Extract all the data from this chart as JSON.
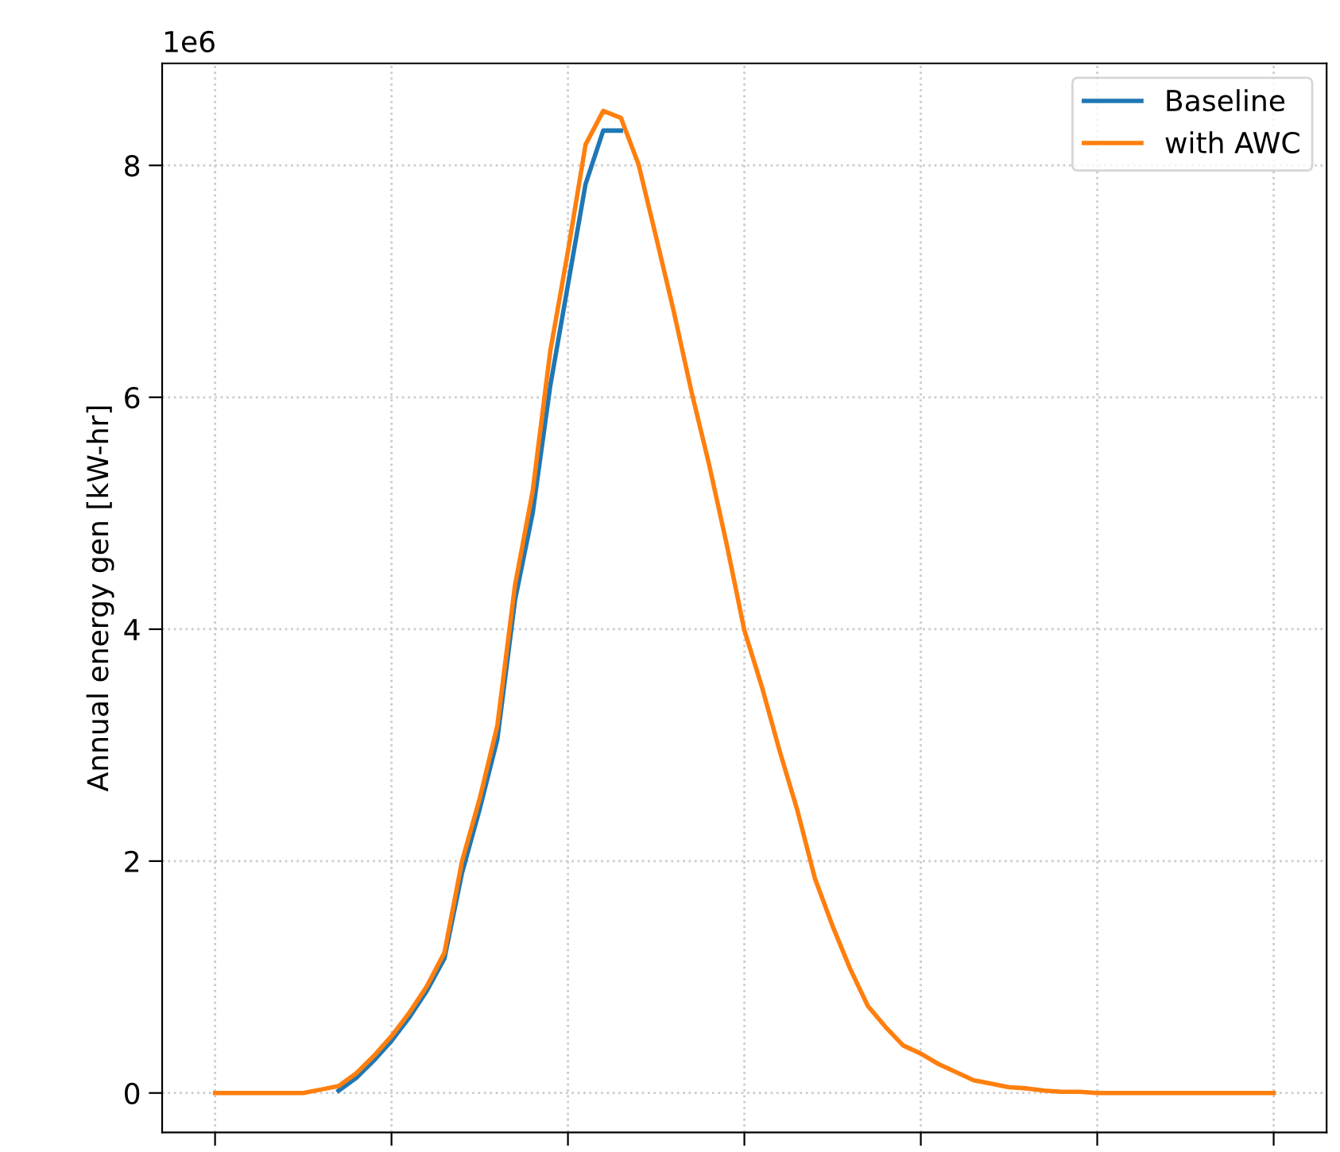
{
  "chart_data": {
    "type": "line",
    "ylabel": "Annual energy gen [kW-hr]",
    "categories": [
      null,
      null,
      null,
      null,
      null,
      null,
      null,
      null,
      null,
      null,
      null,
      null,
      null,
      null,
      null,
      null,
      null,
      null,
      null,
      null,
      null,
      null,
      null,
      null,
      null,
      null,
      null,
      null,
      null,
      null,
      null,
      null,
      null,
      null,
      null,
      null,
      null,
      null,
      null,
      null,
      null,
      null,
      null,
      null,
      null,
      null,
      null,
      null,
      null,
      null,
      null,
      null,
      null,
      null,
      null,
      null,
      null,
      null,
      null,
      null,
      null
    ],
    "series": [
      {
        "name": "Baseline",
        "color": "#1f77b4",
        "values": [
          null,
          null,
          null,
          null,
          null,
          null,
          null,
          0.02,
          0.13,
          0.28,
          0.45,
          0.65,
          0.88,
          1.16,
          1.9,
          2.45,
          3.05,
          4.25,
          5.0,
          6.1,
          6.97,
          7.84,
          8.3,
          8.3,
          null,
          null,
          null,
          null,
          null,
          null,
          null,
          null,
          null,
          null,
          null,
          null,
          null,
          null,
          null,
          null,
          null,
          null,
          null,
          null,
          null,
          null,
          null,
          null,
          null,
          null,
          null,
          null,
          null,
          null,
          null,
          null,
          null,
          null,
          null,
          null,
          null
        ]
      },
      {
        "name": "with AWC",
        "color": "#ff7f0e",
        "values": [
          0,
          0,
          0,
          0,
          0,
          0,
          0.03,
          0.06,
          0.17,
          0.32,
          0.49,
          0.69,
          0.92,
          1.21,
          2.0,
          2.54,
          3.17,
          4.38,
          5.19,
          6.4,
          7.26,
          8.18,
          8.47,
          8.41,
          8.01,
          7.38,
          6.74,
          6.05,
          5.42,
          4.73,
          3.99,
          3.5,
          2.95,
          2.44,
          1.85,
          1.44,
          1.07,
          0.75,
          0.57,
          0.41,
          0.34,
          0.25,
          0.18,
          0.11,
          0.08,
          0.05,
          0.04,
          0.02,
          0.01,
          0.01,
          0,
          0,
          0,
          0,
          0,
          0,
          0,
          0,
          0,
          0,
          0
        ]
      }
    ],
    "ylim": [
      -0.34,
      8.88
    ],
    "yticks": [
      0,
      2,
      4,
      6,
      8
    ],
    "annotations": [
      "1e6"
    ],
    "grid": true,
    "legend": "top right",
    "marker": "none",
    "line_style": "solid",
    "tick_labels": "y"
  }
}
